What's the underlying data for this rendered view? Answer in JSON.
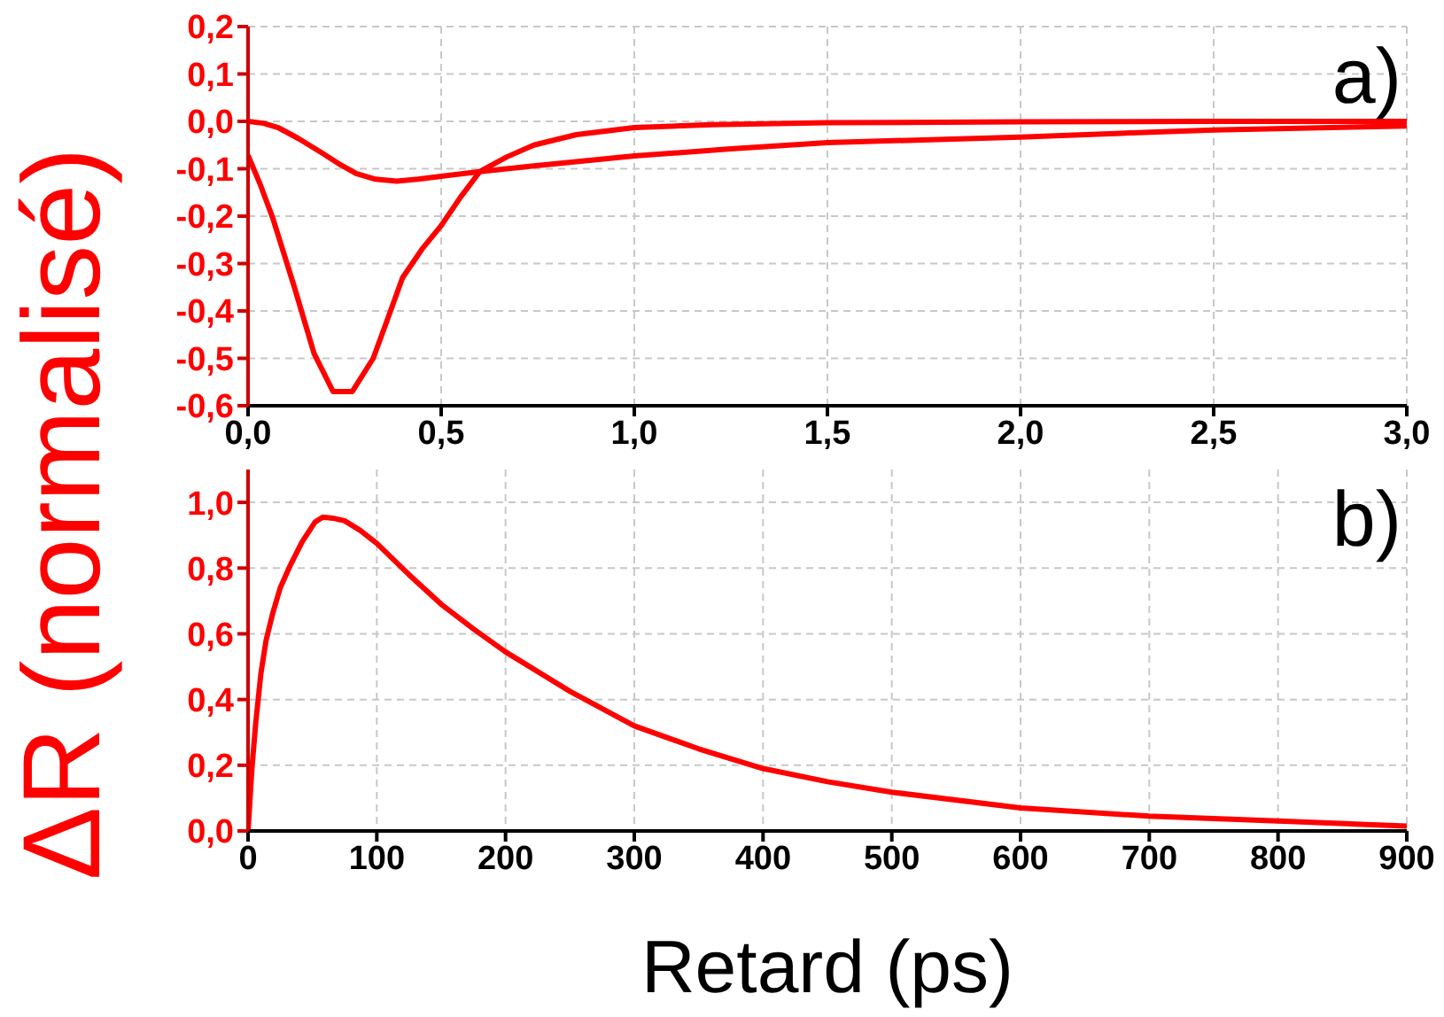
{
  "chart_data": [
    {
      "type": "line",
      "annotations": [
        "a)"
      ],
      "xlim": [
        0,
        3
      ],
      "xticks": [
        {
          "value": 0,
          "label": "0,0"
        },
        {
          "value": 0.5,
          "label": "0,5"
        },
        {
          "value": 1,
          "label": "1,0"
        },
        {
          "value": 1.5,
          "label": "1,5"
        },
        {
          "value": 2,
          "label": "2,0"
        },
        {
          "value": 2.5,
          "label": "2,5"
        },
        {
          "value": 3,
          "label": "3,0"
        }
      ],
      "ylim": [
        -0.6,
        0.2
      ],
      "yticks": [
        {
          "value": -0.6,
          "label": "-0,6"
        },
        {
          "value": -0.5,
          "label": "-0,5"
        },
        {
          "value": -0.4,
          "label": "-0,4"
        },
        {
          "value": -0.3,
          "label": "-0,3"
        },
        {
          "value": -0.2,
          "label": "-0,2"
        },
        {
          "value": -0.1,
          "label": "-0,1"
        },
        {
          "value": 0,
          "label": "0,0"
        },
        {
          "value": 0.1,
          "label": "0,1"
        },
        {
          "value": 0.2,
          "label": "0,2"
        }
      ],
      "grid": true,
      "line_style": "solid",
      "marker": "none",
      "series": [
        {
          "color": "#ff0000",
          "x": [
            0,
            0.03,
            0.064,
            0.12,
            0.171,
            0.22,
            0.27,
            0.324,
            0.36,
            0.4,
            0.45,
            0.5,
            0.55,
            0.6,
            0.67,
            0.74,
            0.85,
            1.0,
            1.2,
            1.5,
            2.0,
            2.5,
            3.0
          ],
          "values": [
            -0.072,
            -0.13,
            -0.204,
            -0.35,
            -0.49,
            -0.57,
            -0.57,
            -0.5,
            -0.42,
            -0.33,
            -0.27,
            -0.22,
            -0.16,
            -0.106,
            -0.075,
            -0.05,
            -0.028,
            -0.013,
            -0.007,
            -0.003,
            -0.001,
            0,
            0
          ]
        },
        {
          "color": "#ff0000",
          "x": [
            0,
            0.04,
            0.08,
            0.13,
            0.19,
            0.24,
            0.28,
            0.33,
            0.385,
            0.44,
            0.5,
            0.6,
            0.74,
            0.85,
            1.0,
            1.25,
            1.5,
            2.0,
            2.5,
            3.0
          ],
          "values": [
            0,
            -0.004,
            -0.014,
            -0.036,
            -0.066,
            -0.092,
            -0.11,
            -0.122,
            -0.126,
            -0.122,
            -0.116,
            -0.106,
            -0.094,
            -0.085,
            -0.073,
            -0.058,
            -0.045,
            -0.033,
            -0.018,
            -0.01
          ]
        }
      ]
    },
    {
      "type": "line",
      "annotations": [
        "b)"
      ],
      "xlabel": "Retard (ps)",
      "ylabel": "ΔR (normalisé)",
      "xlim": [
        0,
        900
      ],
      "xticks": [
        0,
        100,
        200,
        300,
        400,
        500,
        600,
        700,
        800,
        900
      ],
      "ylim": [
        0,
        1.1
      ],
      "yticks": [
        {
          "value": 0,
          "label": "0,0"
        },
        {
          "value": 0.2,
          "label": "0,2"
        },
        {
          "value": 0.4,
          "label": "0,4"
        },
        {
          "value": 0.6,
          "label": "0,6"
        },
        {
          "value": 0.8,
          "label": "0,8"
        },
        {
          "value": 1,
          "label": "1,0"
        }
      ],
      "grid": true,
      "line_style": "solid",
      "marker": "none",
      "series": [
        {
          "color": "#ff0000",
          "x": [
            0,
            3,
            6,
            10,
            14,
            19,
            25,
            33,
            42,
            52,
            58,
            66,
            75,
            87,
            100,
            125,
            150,
            175,
            200,
            250,
            300,
            350,
            400,
            450,
            500,
            600,
            700,
            800,
            900
          ],
          "values": [
            0,
            0.19,
            0.33,
            0.48,
            0.58,
            0.66,
            0.74,
            0.81,
            0.88,
            0.94,
            0.955,
            0.952,
            0.944,
            0.915,
            0.875,
            0.78,
            0.69,
            0.615,
            0.545,
            0.425,
            0.32,
            0.25,
            0.19,
            0.15,
            0.118,
            0.07,
            0.045,
            0.03,
            0.015
          ]
        }
      ]
    }
  ]
}
